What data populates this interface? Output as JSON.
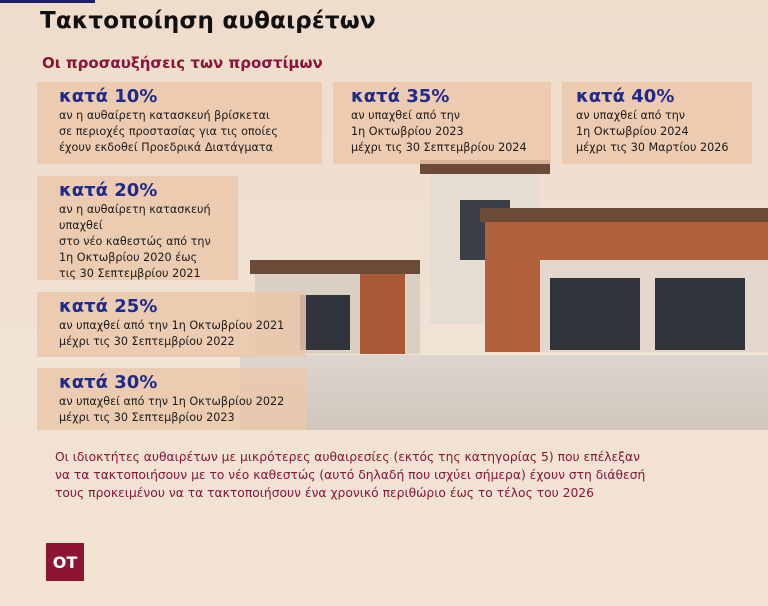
{
  "header": {
    "title": "Τακτοποίηση αυθαιρέτων",
    "subtitle": "Οι προσαυξήσεις των προστίμων"
  },
  "colors": {
    "accent": "#8b1538",
    "percent": "#1f2a8a",
    "brand_bar": "#1c1f6b"
  },
  "boxes": [
    {
      "percent": "κατά 10%",
      "text": "αν η αυθαίρετη κατασκευή βρίσκεται\nσε περιοχές προστασίας για τις οποίες\nέχουν εκδοθεί Προεδρικά Διατάγματα"
    },
    {
      "percent": "κατά 35%",
      "text": "αν υπαχθεί από την\n1η Οκτωβρίου 2023\nμέχρι τις 30 Σεπτεμβρίου 2024"
    },
    {
      "percent": "κατά 40%",
      "text": "αν υπαχθεί από την\n1η Οκτωβρίου 2024\nμέχρι τις 30 Μαρτίου 2026"
    },
    {
      "percent": "κατά 20%",
      "text": "αν η αυθαίρετη κατασκευή υπαχθεί\nστο νέο καθεστώς από την\n1η Οκτωβρίου 2020 έως\nτις 30 Σεπτεμβρίου 2021"
    },
    {
      "percent": "κατά 25%",
      "text": "αν υπαχθεί από την 1η Οκτωβρίου 2021\nμέχρι τις 30 Σεπτεμβρίου 2022"
    },
    {
      "percent": "κατά 30%",
      "text": "αν υπαχθεί από την 1η Οκτωβρίου 2022\nμέχρι τις 30 Σεπτεμβρίου 2023"
    }
  ],
  "note": "Οι ιδιοκτήτες αυθαιρέτων με μικρότερες αυθαιρεσίες (εκτός της κατηγορίας 5) που επέλεξαν\nνα τα τακτοποιήσουν με το νέο καθεστώς (αυτό δηλαδή που ισχύει σήμερα) έχουν στη διάθεσή\nτους προκειμένου να τα τακτοποιήσουν ένα χρονικό περιθώριο έως το τέλος του 2026",
  "logo": "OT"
}
